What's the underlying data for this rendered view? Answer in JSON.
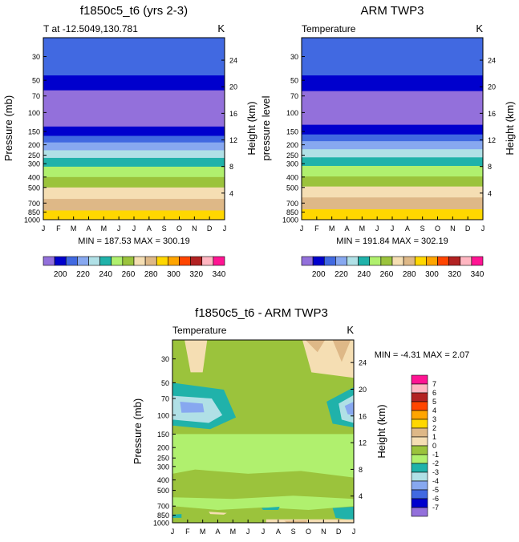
{
  "chart_data": [
    {
      "type": "contour",
      "title": "f1850c5_t6 (yrs 2-3)",
      "subtitle_left": "T at -12.5049,130.781",
      "units": "K",
      "ylabel": "Pressure (mb)",
      "ylabel_right": "Height (km)",
      "xticks": [
        "J",
        "F",
        "M",
        "A",
        "M",
        "J",
        "J",
        "A",
        "S",
        "O",
        "N",
        "D",
        "J"
      ],
      "yticks": [
        "30",
        "50",
        "70",
        "100",
        "150",
        "200",
        "250",
        "300",
        "400",
        "500",
        "700",
        "850",
        "1000"
      ],
      "yticks_right": [
        "24",
        "20",
        "16",
        "12",
        "8",
        "4"
      ],
      "minmax": "MIN = 187.53 MAX = 300.19",
      "bands": [
        {
          "p_top": 20,
          "p_bot": 45,
          "value": 215
        },
        {
          "p_top": 45,
          "p_bot": 62,
          "value": 205
        },
        {
          "p_top": 62,
          "p_bot": 135,
          "value": 195
        },
        {
          "p_top": 135,
          "p_bot": 165,
          "value": 205
        },
        {
          "p_top": 165,
          "p_bot": 190,
          "value": 215
        },
        {
          "p_top": 190,
          "p_bot": 225,
          "value": 225
        },
        {
          "p_top": 225,
          "p_bot": 265,
          "value": 235
        },
        {
          "p_top": 265,
          "p_bot": 320,
          "value": 245
        },
        {
          "p_top": 320,
          "p_bot": 400,
          "value": 255
        },
        {
          "p_top": 400,
          "p_bot": 500,
          "value": 265
        },
        {
          "p_top": 500,
          "p_bot": 640,
          "value": 275
        },
        {
          "p_top": 640,
          "p_bot": 820,
          "value": 285
        },
        {
          "p_top": 820,
          "p_bot": 1000,
          "value": 295
        }
      ]
    },
    {
      "type": "contour",
      "title": "ARM TWP3",
      "subtitle_left": "Temperature",
      "units": "K",
      "ylabel": "pressure level",
      "ylabel_right": "Height (km)",
      "xticks": [
        "J",
        "F",
        "M",
        "A",
        "M",
        "J",
        "J",
        "A",
        "S",
        "O",
        "N",
        "D",
        "J"
      ],
      "yticks": [
        "30",
        "50",
        "70",
        "100",
        "150",
        "200",
        "250",
        "300",
        "400",
        "500",
        "700",
        "850",
        "1000"
      ],
      "yticks_right": [
        "24",
        "20",
        "16",
        "12",
        "8",
        "4"
      ],
      "minmax": "MIN = 191.84 MAX = 302.19",
      "bands": [
        {
          "p_top": 20,
          "p_bot": 45,
          "value": 215
        },
        {
          "p_top": 45,
          "p_bot": 63,
          "value": 205
        },
        {
          "p_top": 63,
          "p_bot": 130,
          "value": 195
        },
        {
          "p_top": 130,
          "p_bot": 160,
          "value": 205
        },
        {
          "p_top": 160,
          "p_bot": 185,
          "value": 215
        },
        {
          "p_top": 185,
          "p_bot": 220,
          "value": 225
        },
        {
          "p_top": 220,
          "p_bot": 262,
          "value": 235
        },
        {
          "p_top": 262,
          "p_bot": 315,
          "value": 245
        },
        {
          "p_top": 315,
          "p_bot": 395,
          "value": 255
        },
        {
          "p_top": 395,
          "p_bot": 490,
          "value": 265
        },
        {
          "p_top": 490,
          "p_bot": 620,
          "value": 275
        },
        {
          "p_top": 620,
          "p_bot": 800,
          "value": 285
        },
        {
          "p_top": 800,
          "p_bot": 1000,
          "value": 295
        }
      ]
    },
    {
      "type": "contour",
      "title": "f1850c5_t6 - ARM TWP3",
      "subtitle_left": "Temperature",
      "units": "K",
      "ylabel": "Pressure (mb)",
      "ylabel_right": "Height (km)",
      "xticks": [
        "J",
        "F",
        "M",
        "A",
        "M",
        "J",
        "J",
        "A",
        "S",
        "O",
        "N",
        "D",
        "J"
      ],
      "yticks": [
        "30",
        "50",
        "70",
        "100",
        "150",
        "200",
        "250",
        "300",
        "400",
        "500",
        "700",
        "850",
        "1000"
      ],
      "yticks_right": [
        "24",
        "20",
        "16",
        "12",
        "8",
        "4"
      ],
      "minmax": "MIN = -4.31 MAX = 2.07",
      "background_value": -1.5,
      "patches": [
        {
          "kind": "poly",
          "value": -0.5,
          "pts": [
            [
              0,
              20
            ],
            [
              12,
              20
            ],
            [
              12,
              200
            ],
            [
              0,
              200
            ]
          ]
        },
        {
          "kind": "poly",
          "value": -1.5,
          "pts": [
            [
              0,
              150
            ],
            [
              12,
              150
            ],
            [
              12,
              800
            ],
            [
              0,
              800
            ]
          ]
        },
        {
          "kind": "poly",
          "value": 0.5,
          "pts": [
            [
              0.8,
              20
            ],
            [
              2.3,
              20
            ],
            [
              2.0,
              40
            ],
            [
              1.2,
              40
            ]
          ]
        },
        {
          "kind": "poly",
          "value": 0.5,
          "pts": [
            [
              8.6,
              20
            ],
            [
              12,
              20
            ],
            [
              12,
              45
            ],
            [
              9.2,
              40
            ]
          ]
        },
        {
          "kind": "poly",
          "value": 1.5,
          "pts": [
            [
              10.6,
              20
            ],
            [
              11.8,
              20
            ],
            [
              11.2,
              32
            ]
          ]
        },
        {
          "kind": "poly",
          "value": 1.5,
          "pts": [
            [
              8.8,
              20
            ],
            [
              10.1,
              20
            ],
            [
              9.6,
              26
            ]
          ]
        },
        {
          "kind": "poly",
          "value": -1.5,
          "pts": [
            [
              0,
              200
            ],
            [
              12,
              200
            ],
            [
              12,
              1000
            ],
            [
              0,
              1000
            ]
          ]
        },
        {
          "kind": "poly",
          "value": -0.5,
          "pts": [
            [
              0,
              350
            ],
            [
              1.5,
              320
            ],
            [
              5,
              350
            ],
            [
              8.5,
              330
            ],
            [
              12,
              380
            ],
            [
              12,
              600
            ],
            [
              8,
              560
            ],
            [
              4,
              600
            ],
            [
              0,
              580
            ]
          ]
        },
        {
          "kind": "poly",
          "value": -0.5,
          "pts": [
            [
              0,
              700
            ],
            [
              3,
              760
            ],
            [
              6,
              720
            ],
            [
              9,
              760
            ],
            [
              12,
              700
            ],
            [
              12,
              1000
            ],
            [
              0,
              1000
            ]
          ]
        },
        {
          "kind": "poly",
          "value": -2.5,
          "pts": [
            [
              0,
              50
            ],
            [
              3.4,
              58
            ],
            [
              4.2,
              105
            ],
            [
              2.5,
              135
            ],
            [
              0,
              125
            ]
          ]
        },
        {
          "kind": "poly",
          "value": -3.5,
          "pts": [
            [
              0,
              66
            ],
            [
              2.6,
              70
            ],
            [
              3.3,
              100
            ],
            [
              2.4,
              118
            ],
            [
              0,
              110
            ]
          ]
        },
        {
          "kind": "poly",
          "value": -4.5,
          "pts": [
            [
              0.5,
              75
            ],
            [
              2.0,
              78
            ],
            [
              2.1,
              94
            ],
            [
              0.6,
              95
            ]
          ]
        },
        {
          "kind": "poly",
          "value": -2.5,
          "pts": [
            [
              12,
              55
            ],
            [
              10.2,
              75
            ],
            [
              10.6,
              120
            ],
            [
              12,
              130
            ]
          ]
        },
        {
          "kind": "poly",
          "value": -3.5,
          "pts": [
            [
              12,
              65
            ],
            [
              11.0,
              78
            ],
            [
              11.2,
              110
            ],
            [
              12,
              118
            ]
          ]
        },
        {
          "kind": "poly",
          "value": -4.5,
          "pts": [
            [
              12,
              75
            ],
            [
              11.4,
              82
            ],
            [
              11.6,
              98
            ],
            [
              12,
              100
            ]
          ]
        },
        {
          "kind": "poly",
          "value": -2.5,
          "pts": [
            [
              5.9,
              730
            ],
            [
              7.1,
              710
            ],
            [
              7.0,
              760
            ],
            [
              6.0,
              760
            ]
          ]
        },
        {
          "kind": "poly",
          "value": -2.5,
          "pts": [
            [
              10.6,
              730
            ],
            [
              12,
              710
            ],
            [
              12,
              950
            ],
            [
              10.8,
              900
            ]
          ]
        },
        {
          "kind": "poly",
          "value": -2.5,
          "pts": [
            [
              0,
              840
            ],
            [
              0.6,
              830
            ],
            [
              0.6,
              900
            ],
            [
              0,
              900
            ]
          ]
        },
        {
          "kind": "poly",
          "value": 0.5,
          "pts": [
            [
              2.4,
              790
            ],
            [
              3.6,
              810
            ],
            [
              3.4,
              840
            ],
            [
              2.5,
              830
            ]
          ]
        },
        {
          "kind": "poly",
          "value": 0.5,
          "pts": [
            [
              6.2,
              930
            ],
            [
              12,
              930
            ],
            [
              12,
              1000
            ],
            [
              6.2,
              1000
            ]
          ]
        },
        {
          "kind": "poly",
          "value": 1.5,
          "pts": [
            [
              7.4,
              960
            ],
            [
              9,
              950
            ],
            [
              8.8,
              1000
            ],
            [
              7.6,
              1000
            ]
          ]
        }
      ]
    }
  ],
  "colorbar_top": {
    "colors": [
      "#9370db",
      "#0000cd",
      "#4169e1",
      "#87a8f0",
      "#b0e0e6",
      "#20b2aa",
      "#b0f06e",
      "#9bc33c",
      "#f5deb3",
      "#deb887",
      "#ffd700",
      "#ffa500",
      "#ff4500",
      "#b22222",
      "#ffb6c1",
      "#ff1493"
    ],
    "labels": [
      "200",
      "220",
      "240",
      "260",
      "280",
      "300",
      "320",
      "340"
    ]
  },
  "colorbar_diff": {
    "colors": [
      "#9370db",
      "#0000cd",
      "#4169e1",
      "#87a8f0",
      "#b0e0e6",
      "#20b2aa",
      "#b0f06e",
      "#9bc33c",
      "#f5deb3",
      "#deb887",
      "#ffd700",
      "#ffa500",
      "#ff4500",
      "#b22222",
      "#ffb6c1",
      "#ff1493"
    ],
    "labels": [
      "-7",
      "-6",
      "-5",
      "-4",
      "-3",
      "-2",
      "-1",
      "0",
      "1",
      "2",
      "3",
      "4",
      "5",
      "6",
      "7"
    ]
  }
}
